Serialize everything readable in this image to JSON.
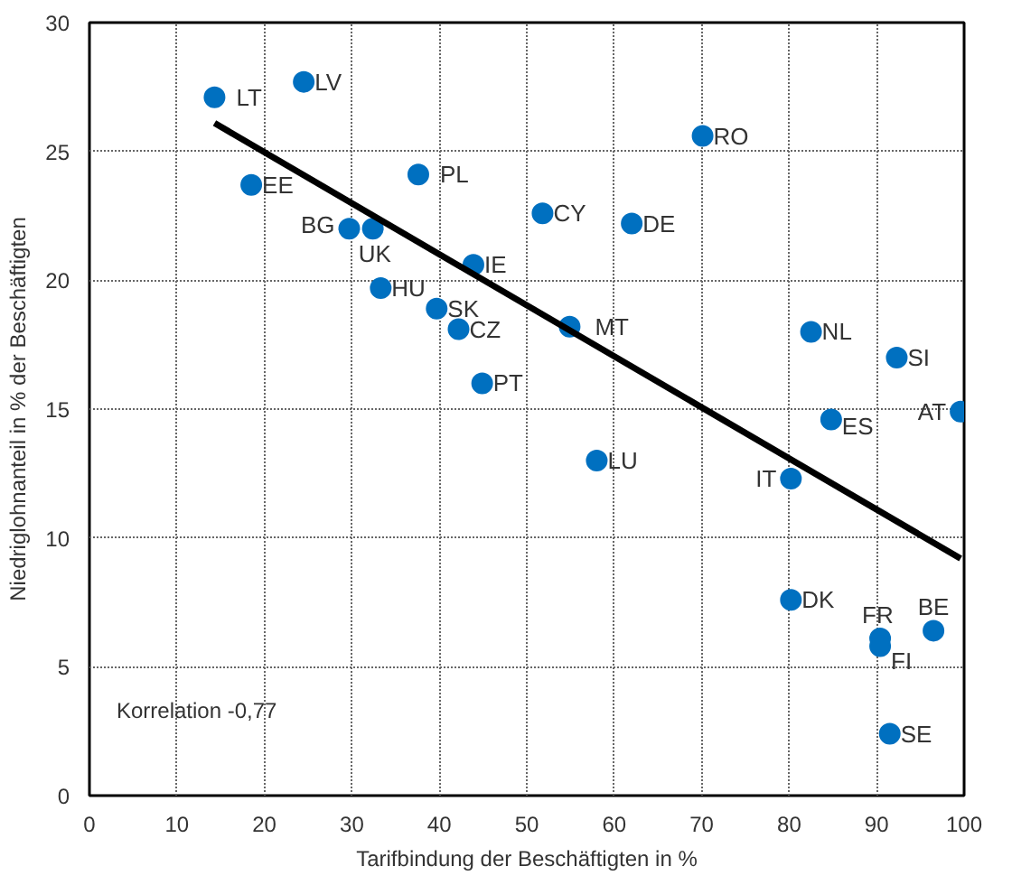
{
  "chart_data": {
    "type": "scatter",
    "xlabel": "Tarifbindung der Beschäftigten in %",
    "ylabel": "Niedriglohnanteil in % der Beschäftigten",
    "xlim": [
      0,
      100
    ],
    "ylim": [
      0,
      30
    ],
    "xticks": [
      0,
      10,
      20,
      30,
      40,
      50,
      60,
      70,
      80,
      90,
      100
    ],
    "yticks": [
      0,
      5,
      10,
      15,
      20,
      25,
      30
    ],
    "grid": true,
    "series": [
      {
        "color": "#0070c0",
        "x": [
          14.3,
          24.5,
          18.5,
          37.6,
          29.7,
          32.4,
          43.9,
          33.3,
          39.7,
          42.2,
          44.9,
          51.8,
          62.0,
          54.9,
          70.1,
          58.0,
          82.5,
          92.3,
          99.6,
          84.8,
          80.2,
          80.2,
          90.4,
          90.4,
          96.5,
          91.5
        ],
        "values": [
          27.1,
          27.7,
          23.7,
          24.1,
          22.0,
          22.0,
          20.6,
          19.7,
          18.9,
          18.1,
          16.0,
          22.6,
          22.2,
          18.2,
          25.6,
          13.0,
          18.0,
          17.0,
          14.9,
          14.6,
          12.3,
          7.6,
          6.1,
          5.8,
          6.4,
          2.4
        ]
      },
      {
        "type": "line",
        "color": "#000000",
        "x": [
          14.3,
          99.6
        ],
        "values": [
          26.1,
          9.2
        ]
      }
    ],
    "annotations": [
      {
        "text": "LT",
        "x": 14.3,
        "y": 27.1
      },
      {
        "text": "LV",
        "x": 24.5,
        "y": 27.7
      },
      {
        "text": "EE",
        "x": 18.5,
        "y": 23.7
      },
      {
        "text": "PL",
        "x": 37.6,
        "y": 24.1
      },
      {
        "text": "BG",
        "x": 29.7,
        "y": 22.0
      },
      {
        "text": "UK",
        "x": 32.4,
        "y": 22.0
      },
      {
        "text": "IE",
        "x": 43.9,
        "y": 20.6
      },
      {
        "text": "HU",
        "x": 33.3,
        "y": 19.7
      },
      {
        "text": "SK",
        "x": 39.7,
        "y": 18.9
      },
      {
        "text": "CZ",
        "x": 42.2,
        "y": 18.1
      },
      {
        "text": "PT",
        "x": 44.9,
        "y": 16.0
      },
      {
        "text": "CY",
        "x": 51.8,
        "y": 22.6
      },
      {
        "text": "DE",
        "x": 62.0,
        "y": 22.2
      },
      {
        "text": "MT",
        "x": 54.9,
        "y": 18.2
      },
      {
        "text": "RO",
        "x": 70.1,
        "y": 25.6
      },
      {
        "text": "LU",
        "x": 58.0,
        "y": 13.0
      },
      {
        "text": "NL",
        "x": 82.5,
        "y": 18.0
      },
      {
        "text": "SI",
        "x": 92.3,
        "y": 17.0
      },
      {
        "text": "AT",
        "x": 99.6,
        "y": 14.9
      },
      {
        "text": "ES",
        "x": 84.8,
        "y": 14.6
      },
      {
        "text": "IT",
        "x": 80.2,
        "y": 12.3
      },
      {
        "text": "DK",
        "x": 80.2,
        "y": 7.6
      },
      {
        "text": "FR",
        "x": 90.4,
        "y": 6.1
      },
      {
        "text": "FI",
        "x": 90.4,
        "y": 5.8
      },
      {
        "text": "BE",
        "x": 96.5,
        "y": 6.4
      },
      {
        "text": "SE",
        "x": 91.5,
        "y": 2.4
      },
      "Korrelation -0,77"
    ]
  }
}
